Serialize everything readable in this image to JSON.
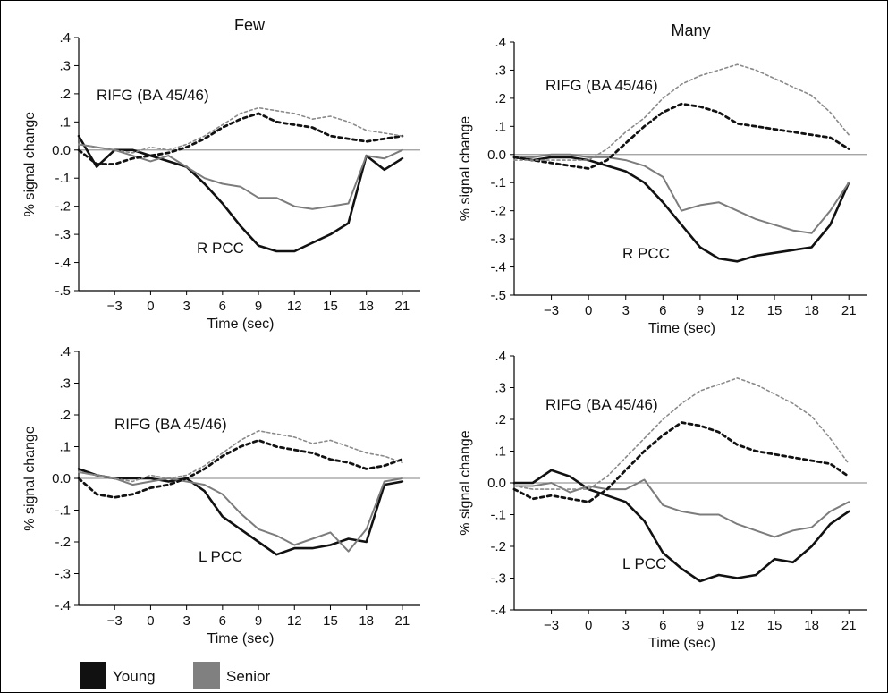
{
  "colors": {
    "young": "#111111",
    "senior": "#7c7c7c",
    "senior_dotted": "#8a8a8a",
    "zero_line": "#9a9a9a",
    "axis": "#000000"
  },
  "legend": {
    "placement": "bottom-left",
    "items": [
      {
        "label": "Young",
        "color": "#111111"
      },
      {
        "label": "Senior",
        "color": "#808080"
      }
    ]
  },
  "chart_data": [
    {
      "type": "line",
      "title": "Few",
      "xlabel": "Time (sec)",
      "ylabel": "% signal change",
      "xlim": [
        -6,
        22.5
      ],
      "ylim": [
        -0.5,
        0.4
      ],
      "xticks": [
        -3,
        0,
        3,
        6,
        9,
        12,
        15,
        18,
        21
      ],
      "xtick_labels": [
        "−3",
        "0",
        "3",
        "6",
        "9",
        "12",
        "15",
        "18",
        "21"
      ],
      "yticks": [
        0.4,
        0.3,
        0.2,
        0.1,
        0.0,
        -0.1,
        -0.2,
        -0.3,
        -0.4,
        -0.5
      ],
      "ytick_labels": [
        ".4",
        ".3",
        ".2",
        ".1",
        "0.0",
        "-.1",
        "-.2",
        "-.3",
        "-.4",
        "-.5"
      ],
      "annotations": [
        {
          "text": "RIFG (BA 45/46)",
          "x": -2,
          "y": 0.13
        },
        {
          "text": "R PCC",
          "x": 7.5,
          "y": -0.3
        }
      ],
      "grid": false,
      "series": [
        {
          "group": "Young",
          "region": "R PCC",
          "style": "solid",
          "x": [
            -6,
            -4.5,
            -3,
            -1.5,
            0,
            1.5,
            3,
            4.5,
            6,
            7.5,
            9,
            10.5,
            12,
            13.5,
            15,
            16.5,
            18,
            19.5,
            21
          ],
          "y": [
            0.05,
            -0.06,
            0.0,
            0.0,
            -0.02,
            -0.04,
            -0.06,
            -0.12,
            -0.19,
            -0.27,
            -0.34,
            -0.36,
            -0.36,
            -0.33,
            -0.3,
            -0.26,
            -0.02,
            -0.07,
            -0.03
          ]
        },
        {
          "group": "Senior",
          "region": "R PCC",
          "style": "solid",
          "x": [
            -6,
            -4.5,
            -3,
            -1.5,
            0,
            1.5,
            3,
            4.5,
            6,
            7.5,
            9,
            10.5,
            12,
            13.5,
            15,
            16.5,
            18,
            19.5,
            21
          ],
          "y": [
            0.02,
            0.01,
            0.0,
            -0.02,
            -0.04,
            -0.02,
            -0.06,
            -0.1,
            -0.12,
            -0.13,
            -0.17,
            -0.17,
            -0.2,
            -0.21,
            -0.2,
            -0.19,
            -0.02,
            -0.03,
            0.0
          ]
        },
        {
          "group": "Young",
          "region": "RIFG (BA 45/46)",
          "style": "dotted",
          "x": [
            -6,
            -4.5,
            -3,
            -1.5,
            0,
            1.5,
            3,
            4.5,
            6,
            7.5,
            9,
            10.5,
            12,
            13.5,
            15,
            16.5,
            18,
            19.5,
            21
          ],
          "y": [
            0.0,
            -0.05,
            -0.05,
            -0.03,
            -0.02,
            -0.01,
            0.01,
            0.04,
            0.08,
            0.11,
            0.13,
            0.1,
            0.09,
            0.08,
            0.05,
            0.04,
            0.03,
            0.04,
            0.05
          ]
        },
        {
          "group": "Senior",
          "region": "RIFG (BA 45/46)",
          "style": "dotted",
          "x": [
            -6,
            -4.5,
            -3,
            -1.5,
            0,
            1.5,
            3,
            4.5,
            6,
            7.5,
            9,
            10.5,
            12,
            13.5,
            15,
            16.5,
            18,
            19.5,
            21
          ],
          "y": [
            0.02,
            0.01,
            0.0,
            -0.01,
            0.01,
            0.0,
            0.02,
            0.05,
            0.09,
            0.13,
            0.15,
            0.14,
            0.13,
            0.11,
            0.12,
            0.1,
            0.07,
            0.06,
            0.05
          ]
        }
      ]
    },
    {
      "type": "line",
      "title": "Many",
      "xlabel": "Time (sec)",
      "ylabel": "% signal change",
      "xlim": [
        -6,
        22.5
      ],
      "ylim": [
        -0.5,
        0.4
      ],
      "xticks": [
        -3,
        0,
        3,
        6,
        9,
        12,
        15,
        18,
        21
      ],
      "xtick_labels": [
        "−3",
        "0",
        "3",
        "6",
        "9",
        "12",
        "15",
        "18",
        "21"
      ],
      "yticks": [
        0.4,
        0.3,
        0.2,
        0.1,
        0.0,
        -0.1,
        -0.2,
        -0.3,
        -0.4,
        -0.5
      ],
      "ytick_labels": [
        ".4",
        ".3",
        ".2",
        ".1",
        "0.0",
        "-.1",
        "-.2",
        "-.3",
        "-.4",
        "-.5"
      ],
      "annotations": [
        {
          "text": "RIFG (BA 45/46)",
          "x": -2.5,
          "y": 0.18
        },
        {
          "text": "R PCC",
          "x": 9,
          "y": -0.27
        }
      ],
      "grid": false,
      "series": [
        {
          "group": "Young",
          "region": "R PCC",
          "style": "solid",
          "x": [
            -6,
            -4.5,
            -3,
            -1.5,
            0,
            1.5,
            3,
            4.5,
            6,
            7.5,
            9,
            10.5,
            12,
            13.5,
            15,
            16.5,
            18,
            19.5,
            21
          ],
          "y": [
            -0.01,
            -0.02,
            -0.01,
            -0.01,
            -0.02,
            -0.04,
            -0.06,
            -0.1,
            -0.17,
            -0.25,
            -0.33,
            -0.37,
            -0.38,
            -0.36,
            -0.35,
            -0.34,
            -0.33,
            -0.25,
            -0.1
          ]
        },
        {
          "group": "Senior",
          "region": "R PCC",
          "style": "solid",
          "x": [
            -6,
            -4.5,
            -3,
            -1.5,
            0,
            1.5,
            3,
            4.5,
            6,
            7.5,
            9,
            10.5,
            12,
            13.5,
            15,
            16.5,
            18,
            19.5,
            21
          ],
          "y": [
            -0.01,
            -0.01,
            0.0,
            0.0,
            -0.01,
            -0.01,
            -0.02,
            -0.04,
            -0.08,
            -0.2,
            -0.18,
            -0.17,
            -0.2,
            -0.23,
            -0.25,
            -0.27,
            -0.28,
            -0.2,
            -0.1
          ]
        },
        {
          "group": "Young",
          "region": "RIFG (BA 45/46)",
          "style": "dotted",
          "x": [
            -6,
            -4.5,
            -3,
            -1.5,
            0,
            1.5,
            3,
            4.5,
            6,
            7.5,
            9,
            10.5,
            12,
            13.5,
            15,
            16.5,
            18,
            19.5,
            21
          ],
          "y": [
            -0.01,
            -0.02,
            -0.03,
            -0.04,
            -0.05,
            -0.02,
            0.04,
            0.1,
            0.15,
            0.18,
            0.17,
            0.15,
            0.11,
            0.1,
            0.09,
            0.08,
            0.07,
            0.06,
            0.02
          ]
        },
        {
          "group": "Senior",
          "region": "RIFG (BA 45/46)",
          "style": "dotted",
          "x": [
            -6,
            -4.5,
            -3,
            -1.5,
            0,
            1.5,
            3,
            4.5,
            6,
            7.5,
            9,
            10.5,
            12,
            13.5,
            15,
            16.5,
            18,
            19.5,
            21
          ],
          "y": [
            -0.02,
            -0.02,
            -0.02,
            -0.02,
            -0.02,
            0.02,
            0.08,
            0.13,
            0.2,
            0.25,
            0.28,
            0.3,
            0.32,
            0.3,
            0.27,
            0.24,
            0.21,
            0.15,
            0.07
          ]
        }
      ]
    },
    {
      "type": "line",
      "title": "",
      "xlabel": "Time (sec)",
      "ylabel": "% signal change",
      "xlim": [
        -6,
        22.5
      ],
      "ylim": [
        -0.4,
        0.4
      ],
      "xticks": [
        -3,
        0,
        3,
        6,
        9,
        12,
        15,
        18,
        21
      ],
      "xtick_labels": [
        "−3",
        "0",
        "3",
        "6",
        "9",
        "12",
        "15",
        "18",
        "21"
      ],
      "yticks": [
        0.4,
        0.3,
        0.2,
        0.1,
        0.0,
        -0.1,
        -0.2,
        -0.3,
        -0.4
      ],
      "ytick_labels": [
        ".4",
        ".3",
        ".2",
        ".1",
        "0.0",
        "-.1",
        "-.2",
        "-.3",
        "-.4"
      ],
      "annotations": [
        {
          "text": "RIFG (BA 45/46)",
          "x": -1,
          "y": 0.13
        },
        {
          "text": "L PCC",
          "x": 6.5,
          "y": -0.24
        }
      ],
      "grid": false,
      "series": [
        {
          "group": "Young",
          "region": "L PCC",
          "style": "solid",
          "x": [
            -6,
            -4.5,
            -3,
            -1.5,
            0,
            1.5,
            3,
            4.5,
            6,
            7.5,
            9,
            10.5,
            12,
            13.5,
            15,
            16.5,
            18,
            19.5,
            21
          ],
          "y": [
            0.03,
            0.01,
            0.0,
            0.0,
            0.0,
            -0.01,
            0.0,
            -0.04,
            -0.12,
            -0.16,
            -0.2,
            -0.24,
            -0.22,
            -0.22,
            -0.21,
            -0.19,
            -0.2,
            -0.02,
            -0.01
          ]
        },
        {
          "group": "Senior",
          "region": "L PCC",
          "style": "solid",
          "x": [
            -6,
            -4.5,
            -3,
            -1.5,
            0,
            1.5,
            3,
            4.5,
            6,
            7.5,
            9,
            10.5,
            12,
            13.5,
            15,
            16.5,
            18,
            19.5,
            21
          ],
          "y": [
            0.02,
            0.01,
            0.0,
            -0.02,
            -0.01,
            0.0,
            -0.01,
            -0.02,
            -0.05,
            -0.11,
            -0.16,
            -0.18,
            -0.21,
            -0.19,
            -0.17,
            -0.23,
            -0.16,
            -0.01,
            0.0
          ]
        },
        {
          "group": "Young",
          "region": "RIFG (BA 45/46)",
          "style": "dotted",
          "x": [
            -6,
            -4.5,
            -3,
            -1.5,
            0,
            1.5,
            3,
            4.5,
            6,
            7.5,
            9,
            10.5,
            12,
            13.5,
            15,
            16.5,
            18,
            19.5,
            21
          ],
          "y": [
            0.0,
            -0.05,
            -0.06,
            -0.05,
            -0.03,
            -0.02,
            0.0,
            0.03,
            0.07,
            0.1,
            0.12,
            0.1,
            0.09,
            0.08,
            0.06,
            0.05,
            0.03,
            0.04,
            0.06
          ]
        },
        {
          "group": "Senior",
          "region": "RIFG (BA 45/46)",
          "style": "dotted",
          "x": [
            -6,
            -4.5,
            -3,
            -1.5,
            0,
            1.5,
            3,
            4.5,
            6,
            7.5,
            9,
            10.5,
            12,
            13.5,
            15,
            16.5,
            18,
            19.5,
            21
          ],
          "y": [
            0.02,
            0.01,
            0.0,
            -0.01,
            0.01,
            0.0,
            0.01,
            0.04,
            0.08,
            0.12,
            0.15,
            0.14,
            0.13,
            0.11,
            0.12,
            0.1,
            0.08,
            0.07,
            0.05
          ]
        }
      ]
    },
    {
      "type": "line",
      "title": "",
      "xlabel": "Time (sec)",
      "ylabel": "% signal change",
      "xlim": [
        -6,
        22.5
      ],
      "ylim": [
        -0.4,
        0.4
      ],
      "xticks": [
        -3,
        0,
        3,
        6,
        9,
        12,
        15,
        18,
        21
      ],
      "xtick_labels": [
        "−3",
        "0",
        "3",
        "6",
        "9",
        "12",
        "15",
        "18",
        "21"
      ],
      "yticks": [
        0.4,
        0.3,
        0.2,
        0.1,
        0.0,
        -0.1,
        -0.2,
        -0.3,
        -0.4
      ],
      "ytick_labels": [
        ".4",
        ".3",
        ".2",
        ".1",
        "0.0",
        "-.1",
        "-.2",
        "-.3",
        "-.4"
      ],
      "annotations": [
        {
          "text": "RIFG (BA 45/46)",
          "x": -2.5,
          "y": 0.21
        },
        {
          "text": "L PCC",
          "x": 3.5,
          "y": -0.23
        }
      ],
      "grid": false,
      "series": [
        {
          "group": "Young",
          "region": "L PCC",
          "style": "solid",
          "x": [
            -6,
            -4.5,
            -3,
            -1.5,
            0,
            1.5,
            3,
            4.5,
            6,
            7.5,
            9,
            10.5,
            12,
            13.5,
            15,
            16.5,
            18,
            19.5,
            21
          ],
          "y": [
            0.0,
            0.0,
            0.04,
            0.02,
            -0.02,
            -0.04,
            -0.06,
            -0.12,
            -0.22,
            -0.27,
            -0.31,
            -0.29,
            -0.3,
            -0.29,
            -0.24,
            -0.25,
            -0.2,
            -0.13,
            -0.09
          ]
        },
        {
          "group": "Senior",
          "region": "L PCC",
          "style": "solid",
          "x": [
            -6,
            -4.5,
            -3,
            -1.5,
            0,
            1.5,
            3,
            4.5,
            6,
            7.5,
            9,
            10.5,
            12,
            13.5,
            15,
            16.5,
            18,
            19.5,
            21
          ],
          "y": [
            -0.01,
            -0.01,
            0.0,
            -0.03,
            -0.01,
            -0.02,
            -0.02,
            0.01,
            -0.07,
            -0.09,
            -0.1,
            -0.1,
            -0.13,
            -0.15,
            -0.17,
            -0.15,
            -0.14,
            -0.09,
            -0.06
          ]
        },
        {
          "group": "Young",
          "region": "RIFG (BA 45/46)",
          "style": "dotted",
          "x": [
            -6,
            -4.5,
            -3,
            -1.5,
            0,
            1.5,
            3,
            4.5,
            6,
            7.5,
            9,
            10.5,
            12,
            13.5,
            15,
            16.5,
            18,
            19.5,
            21
          ],
          "y": [
            -0.02,
            -0.05,
            -0.04,
            -0.05,
            -0.06,
            -0.02,
            0.04,
            0.1,
            0.15,
            0.19,
            0.18,
            0.16,
            0.12,
            0.1,
            0.09,
            0.08,
            0.07,
            0.06,
            0.02
          ]
        },
        {
          "group": "Senior",
          "region": "RIFG (BA 45/46)",
          "style": "dotted",
          "x": [
            -6,
            -4.5,
            -3,
            -1.5,
            0,
            1.5,
            3,
            4.5,
            6,
            7.5,
            9,
            10.5,
            12,
            13.5,
            15,
            16.5,
            18,
            19.5,
            21
          ],
          "y": [
            -0.01,
            -0.02,
            -0.02,
            -0.02,
            -0.02,
            0.02,
            0.08,
            0.14,
            0.2,
            0.25,
            0.29,
            0.31,
            0.33,
            0.31,
            0.28,
            0.25,
            0.21,
            0.14,
            0.06
          ]
        }
      ]
    }
  ]
}
